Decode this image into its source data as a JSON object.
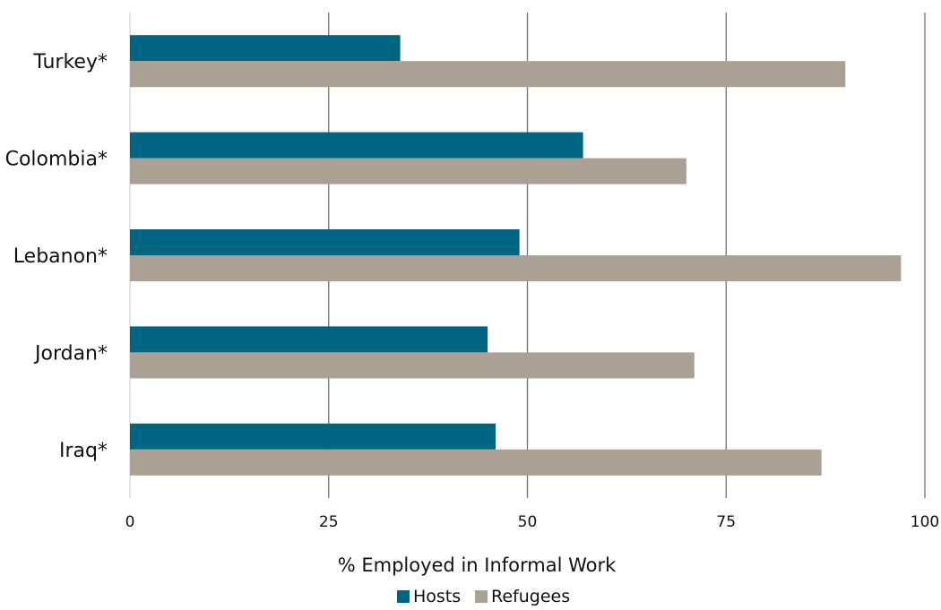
{
  "chart_data": {
    "type": "bar",
    "orientation": "horizontal",
    "categories": [
      "Turkey*",
      "Colombia*",
      "Lebanon*",
      "Jordan*",
      "Iraq*"
    ],
    "series": [
      {
        "name": "Hosts",
        "color": "#006580",
        "values": [
          34,
          57,
          49,
          45,
          46
        ]
      },
      {
        "name": "Refugees",
        "color": "#aba094",
        "values": [
          90,
          70,
          97,
          71,
          87
        ]
      }
    ],
    "xlabel": "% Employed in Informal Work",
    "xlim": [
      0,
      100
    ],
    "xticks": [
      0,
      25,
      50,
      75,
      100
    ],
    "grid": true,
    "legend_position": "bottom"
  }
}
